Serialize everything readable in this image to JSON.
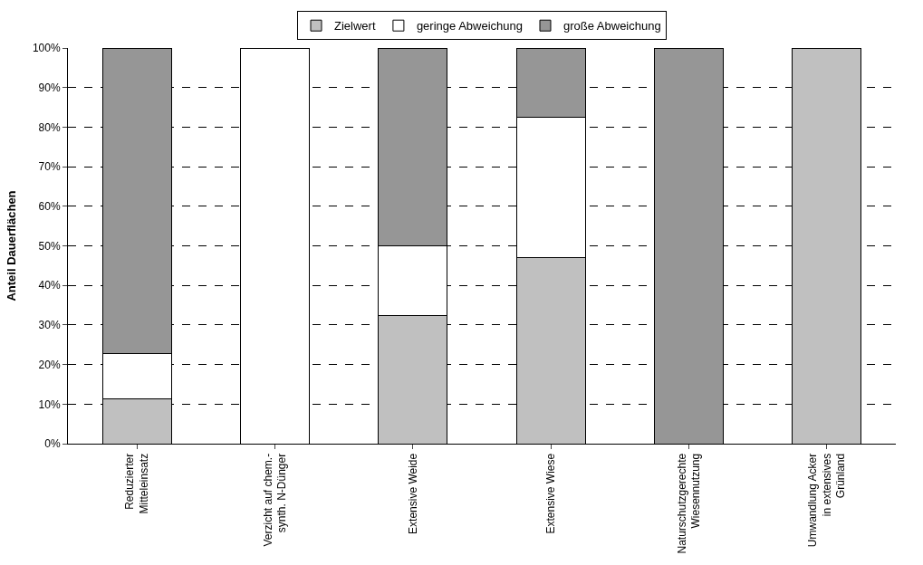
{
  "chart_data": {
    "type": "bar",
    "stacked": true,
    "ylabel": "Anteil Dauerflächen",
    "categories": [
      "Reduzierter\nMitteleinsatz",
      "Verzicht auf chem.-\nsynth. N-Dünger",
      "Extensive Weide",
      "Extensive Wiese",
      "Naturschutzgerechte\nWiesennutzung",
      "Umwandlung Acker\nin extensives\nGrünland"
    ],
    "series": [
      {
        "name": "Zielwert",
        "color": "#c0c0c0",
        "values": [
          11.3,
          null,
          32.3,
          47.1,
          null,
          100
        ]
      },
      {
        "name": "geringe Abweichung",
        "color": "#ffffff",
        "values": [
          11.4,
          100,
          17.7,
          35.3,
          null,
          null
        ]
      },
      {
        "name": "große Abweichung",
        "color": "#969696",
        "values": [
          77.3,
          null,
          50,
          17.6,
          100,
          null
        ]
      }
    ],
    "ylim": [
      0,
      100
    ],
    "yticks": [
      {
        "value": 0,
        "label": "0%"
      },
      {
        "value": 10,
        "label": "10%"
      },
      {
        "value": 20,
        "label": "20%"
      },
      {
        "value": 30,
        "label": "30%"
      },
      {
        "value": 40,
        "label": "40%"
      },
      {
        "value": 50,
        "label": "50%"
      },
      {
        "value": 60,
        "label": "60%"
      },
      {
        "value": 70,
        "label": "70%"
      },
      {
        "value": 80,
        "label": "80%"
      },
      {
        "value": 90,
        "label": "90%"
      },
      {
        "value": 100,
        "label": "100%"
      }
    ],
    "grid": "y",
    "line_style": "dashed",
    "legend": "top"
  }
}
